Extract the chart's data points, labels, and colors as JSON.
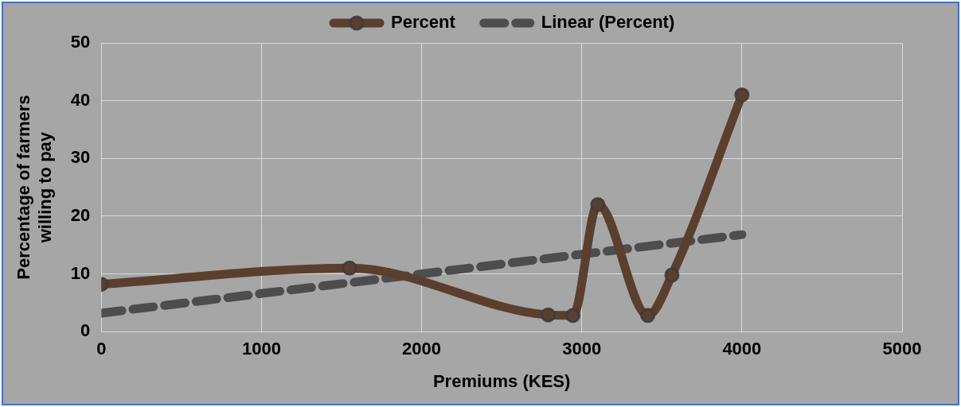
{
  "chart_data": {
    "type": "line",
    "xlabel": "Premiums (KES)",
    "ylabel": "Percentage of farmers willing to pay",
    "xlim": [
      0,
      5000
    ],
    "xticks": [
      0,
      1000,
      2000,
      3000,
      4000,
      5000
    ],
    "ylim": [
      0,
      50
    ],
    "yticks": [
      0,
      10,
      20,
      30,
      40,
      50
    ],
    "grid": true,
    "legend": "top",
    "marker": "circle",
    "series": [
      {
        "name": "Percent",
        "color": "#5b3f2e",
        "x": [
          0,
          1550,
          2790,
          2945,
          3100,
          3412,
          3563,
          4000
        ],
        "values": [
          8.2,
          11,
          2.9,
          2.8,
          22,
          2.8,
          9.8,
          41
        ]
      },
      {
        "name": "Linear (Percent)",
        "type": "line",
        "color": "#4d4d4d",
        "line_style": "dashed",
        "marker": "none",
        "x": [
          0,
          4000
        ],
        "values": [
          3.2,
          16.8
        ]
      }
    ]
  }
}
